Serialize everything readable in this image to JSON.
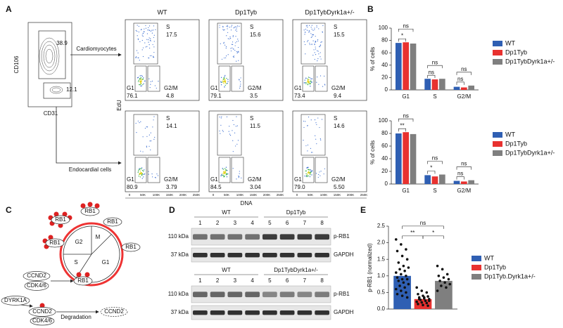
{
  "panel_A": {
    "label": "A",
    "gate_plot": {
      "y_axis": "CD106",
      "x_axis": "CD31",
      "gates": [
        "38.9",
        "12.1"
      ]
    },
    "branches": [
      "Cardiomyocytes",
      "Endocardial cells"
    ],
    "columns": [
      "WT",
      "Dp1Tyb",
      "Dp1TybDyrk1a+/-"
    ],
    "gate_names": [
      "S",
      "G1",
      "G2/M"
    ],
    "rows": [
      {
        "S": [
          "17.5",
          "15.6",
          "15.5"
        ],
        "G1": [
          "76.1",
          "79.1",
          "73.4"
        ],
        "G2M": [
          "4.8",
          "3.5",
          "9.4"
        ]
      },
      {
        "S": [
          "14.1",
          "11.5",
          "14.6"
        ],
        "G1": [
          "80.9",
          "84.5",
          "79.0"
        ],
        "G2M": [
          "3.79",
          "3.04",
          "5.50"
        ]
      }
    ],
    "y_axis": "EdU",
    "x_axis": "DNA",
    "x_ticks": [
      "0",
      "50K",
      "100K",
      "150K",
      "200K",
      "250K"
    ]
  },
  "panel_C": {
    "label": "C",
    "phases": [
      "G2",
      "M",
      "S",
      "G1"
    ],
    "rb1": "RB1",
    "ccnd2": "CCND2",
    "cdk": "CDK4/6",
    "dyrk1a": "DYRK1A",
    "degradation": "Degradation"
  },
  "panel_D": {
    "label": "D",
    "blots": [
      {
        "groups": [
          "WT",
          "Dp1Tyb"
        ],
        "lanes": [
          1,
          2,
          3,
          4,
          5,
          6,
          7,
          8
        ],
        "markers": [
          "110 kDa",
          "37 kDa"
        ],
        "proteins": [
          "p-RB1",
          "GAPDH"
        ]
      },
      {
        "groups": [
          "WT",
          "Dp1TybDyrk1a+/-"
        ],
        "lanes": [
          1,
          2,
          3,
          4,
          5,
          6,
          7,
          8
        ],
        "markers": [
          "110 kDa",
          "37 kDa"
        ],
        "proteins": [
          "p-RB1",
          "GAPDH"
        ]
      }
    ]
  },
  "chart_data": [
    {
      "type": "bar",
      "panel": "B",
      "y_label": "% of cells",
      "categories": [
        "G1",
        "S",
        "G2/M"
      ],
      "series": [
        {
          "name": "WT",
          "color": "#2f5fb3",
          "values": [
            76,
            18,
            5
          ]
        },
        {
          "name": "Dp1Tyb",
          "color": "#e8312f",
          "values": [
            77,
            17,
            4
          ]
        },
        {
          "name": "Dp1TybDyrk1a+/-",
          "color": "#7f7f7f",
          "values": [
            75,
            18,
            7
          ]
        }
      ],
      "ylim": [
        0,
        100
      ],
      "yticks": [
        0,
        20,
        40,
        60,
        80,
        100
      ],
      "annotations": [
        {
          "text": "*",
          "category": 0,
          "pair": [
            0,
            1
          ]
        },
        {
          "text": "ns",
          "category": 0,
          "pair": [
            0,
            2
          ]
        },
        {
          "text": "ns",
          "category": 1,
          "pair": [
            0,
            1
          ]
        },
        {
          "text": "ns",
          "category": 1,
          "pair": [
            0,
            2
          ]
        },
        {
          "text": "ns",
          "category": 2,
          "pair": [
            0,
            1
          ]
        },
        {
          "text": "ns",
          "category": 2,
          "pair": [
            0,
            2
          ]
        }
      ]
    },
    {
      "type": "bar",
      "y_label": "% of cells",
      "categories": [
        "G1",
        "S",
        "G2/M"
      ],
      "series": [
        {
          "name": "WT",
          "color": "#2f5fb3",
          "values": [
            80,
            14,
            5
          ]
        },
        {
          "name": "Dp1Tyb",
          "color": "#e8312f",
          "values": [
            82,
            12,
            4
          ]
        },
        {
          "name": "Dp1TybDyrk1a+/-",
          "color": "#7f7f7f",
          "values": [
            79,
            15,
            6
          ]
        }
      ],
      "ylim": [
        0,
        100
      ],
      "yticks": [
        0,
        20,
        40,
        60,
        80,
        100
      ],
      "annotations": [
        {
          "text": "**",
          "category": 0,
          "pair": [
            0,
            1
          ]
        },
        {
          "text": "ns",
          "category": 0,
          "pair": [
            0,
            2
          ]
        },
        {
          "text": "*",
          "category": 1,
          "pair": [
            0,
            1
          ]
        },
        {
          "text": "ns",
          "category": 1,
          "pair": [
            0,
            2
          ]
        },
        {
          "text": "ns",
          "category": 2,
          "pair": [
            0,
            1
          ]
        },
        {
          "text": "ns",
          "category": 2,
          "pair": [
            0,
            2
          ]
        }
      ]
    },
    {
      "type": "bar",
      "panel": "E",
      "y_label": "p-RB1 (normalized)",
      "categories": [
        null
      ],
      "point_color": "#111111",
      "series": [
        {
          "name": "WT",
          "color": "#2f5fb3",
          "values": [
            1.0
          ],
          "points": [
            2.1,
            1.95,
            1.8,
            1.75,
            1.6,
            1.5,
            1.4,
            1.3,
            1.25,
            1.2,
            1.15,
            1.1,
            1.05,
            1.0,
            0.95,
            0.9,
            0.9,
            0.85,
            0.8,
            0.75,
            0.7,
            0.65,
            0.6,
            0.55,
            0.5,
            0.45,
            0.4,
            0.35
          ]
        },
        {
          "name": "Dp1Tyb",
          "color": "#e8312f",
          "values": [
            0.3
          ],
          "points": [
            0.65,
            0.55,
            0.5,
            0.45,
            0.4,
            0.38,
            0.35,
            0.32,
            0.3,
            0.28,
            0.25,
            0.22,
            0.2,
            0.18,
            0.15,
            0.12,
            0.1,
            0.3,
            0.35,
            0.25
          ]
        },
        {
          "name": "Dp1Tyb.Dyrk1a+/-",
          "color": "#7f7f7f",
          "values": [
            0.85
          ],
          "points": [
            1.3,
            1.2,
            1.05,
            1.0,
            0.95,
            0.9,
            0.85,
            0.8,
            0.75,
            0.7,
            0.65,
            0.55
          ]
        }
      ],
      "ylim": [
        0,
        2.5
      ],
      "yticks": [
        {
          "value": 0,
          "label": "0.0"
        },
        {
          "value": 0.5,
          "label": "0.5"
        },
        {
          "value": 1,
          "label": "1.0"
        },
        {
          "value": 1.5,
          "label": "1.5"
        },
        {
          "value": 2,
          "label": "2.0"
        },
        {
          "value": 2.5,
          "label": "2.5"
        }
      ],
      "annotations": [
        {
          "text": "**",
          "category": 0,
          "pair": [
            0,
            1
          ]
        },
        {
          "text": "*",
          "category": 0,
          "pair": [
            1,
            2
          ]
        },
        {
          "text": "ns",
          "category": 0,
          "pair": [
            0,
            2
          ]
        }
      ]
    }
  ]
}
